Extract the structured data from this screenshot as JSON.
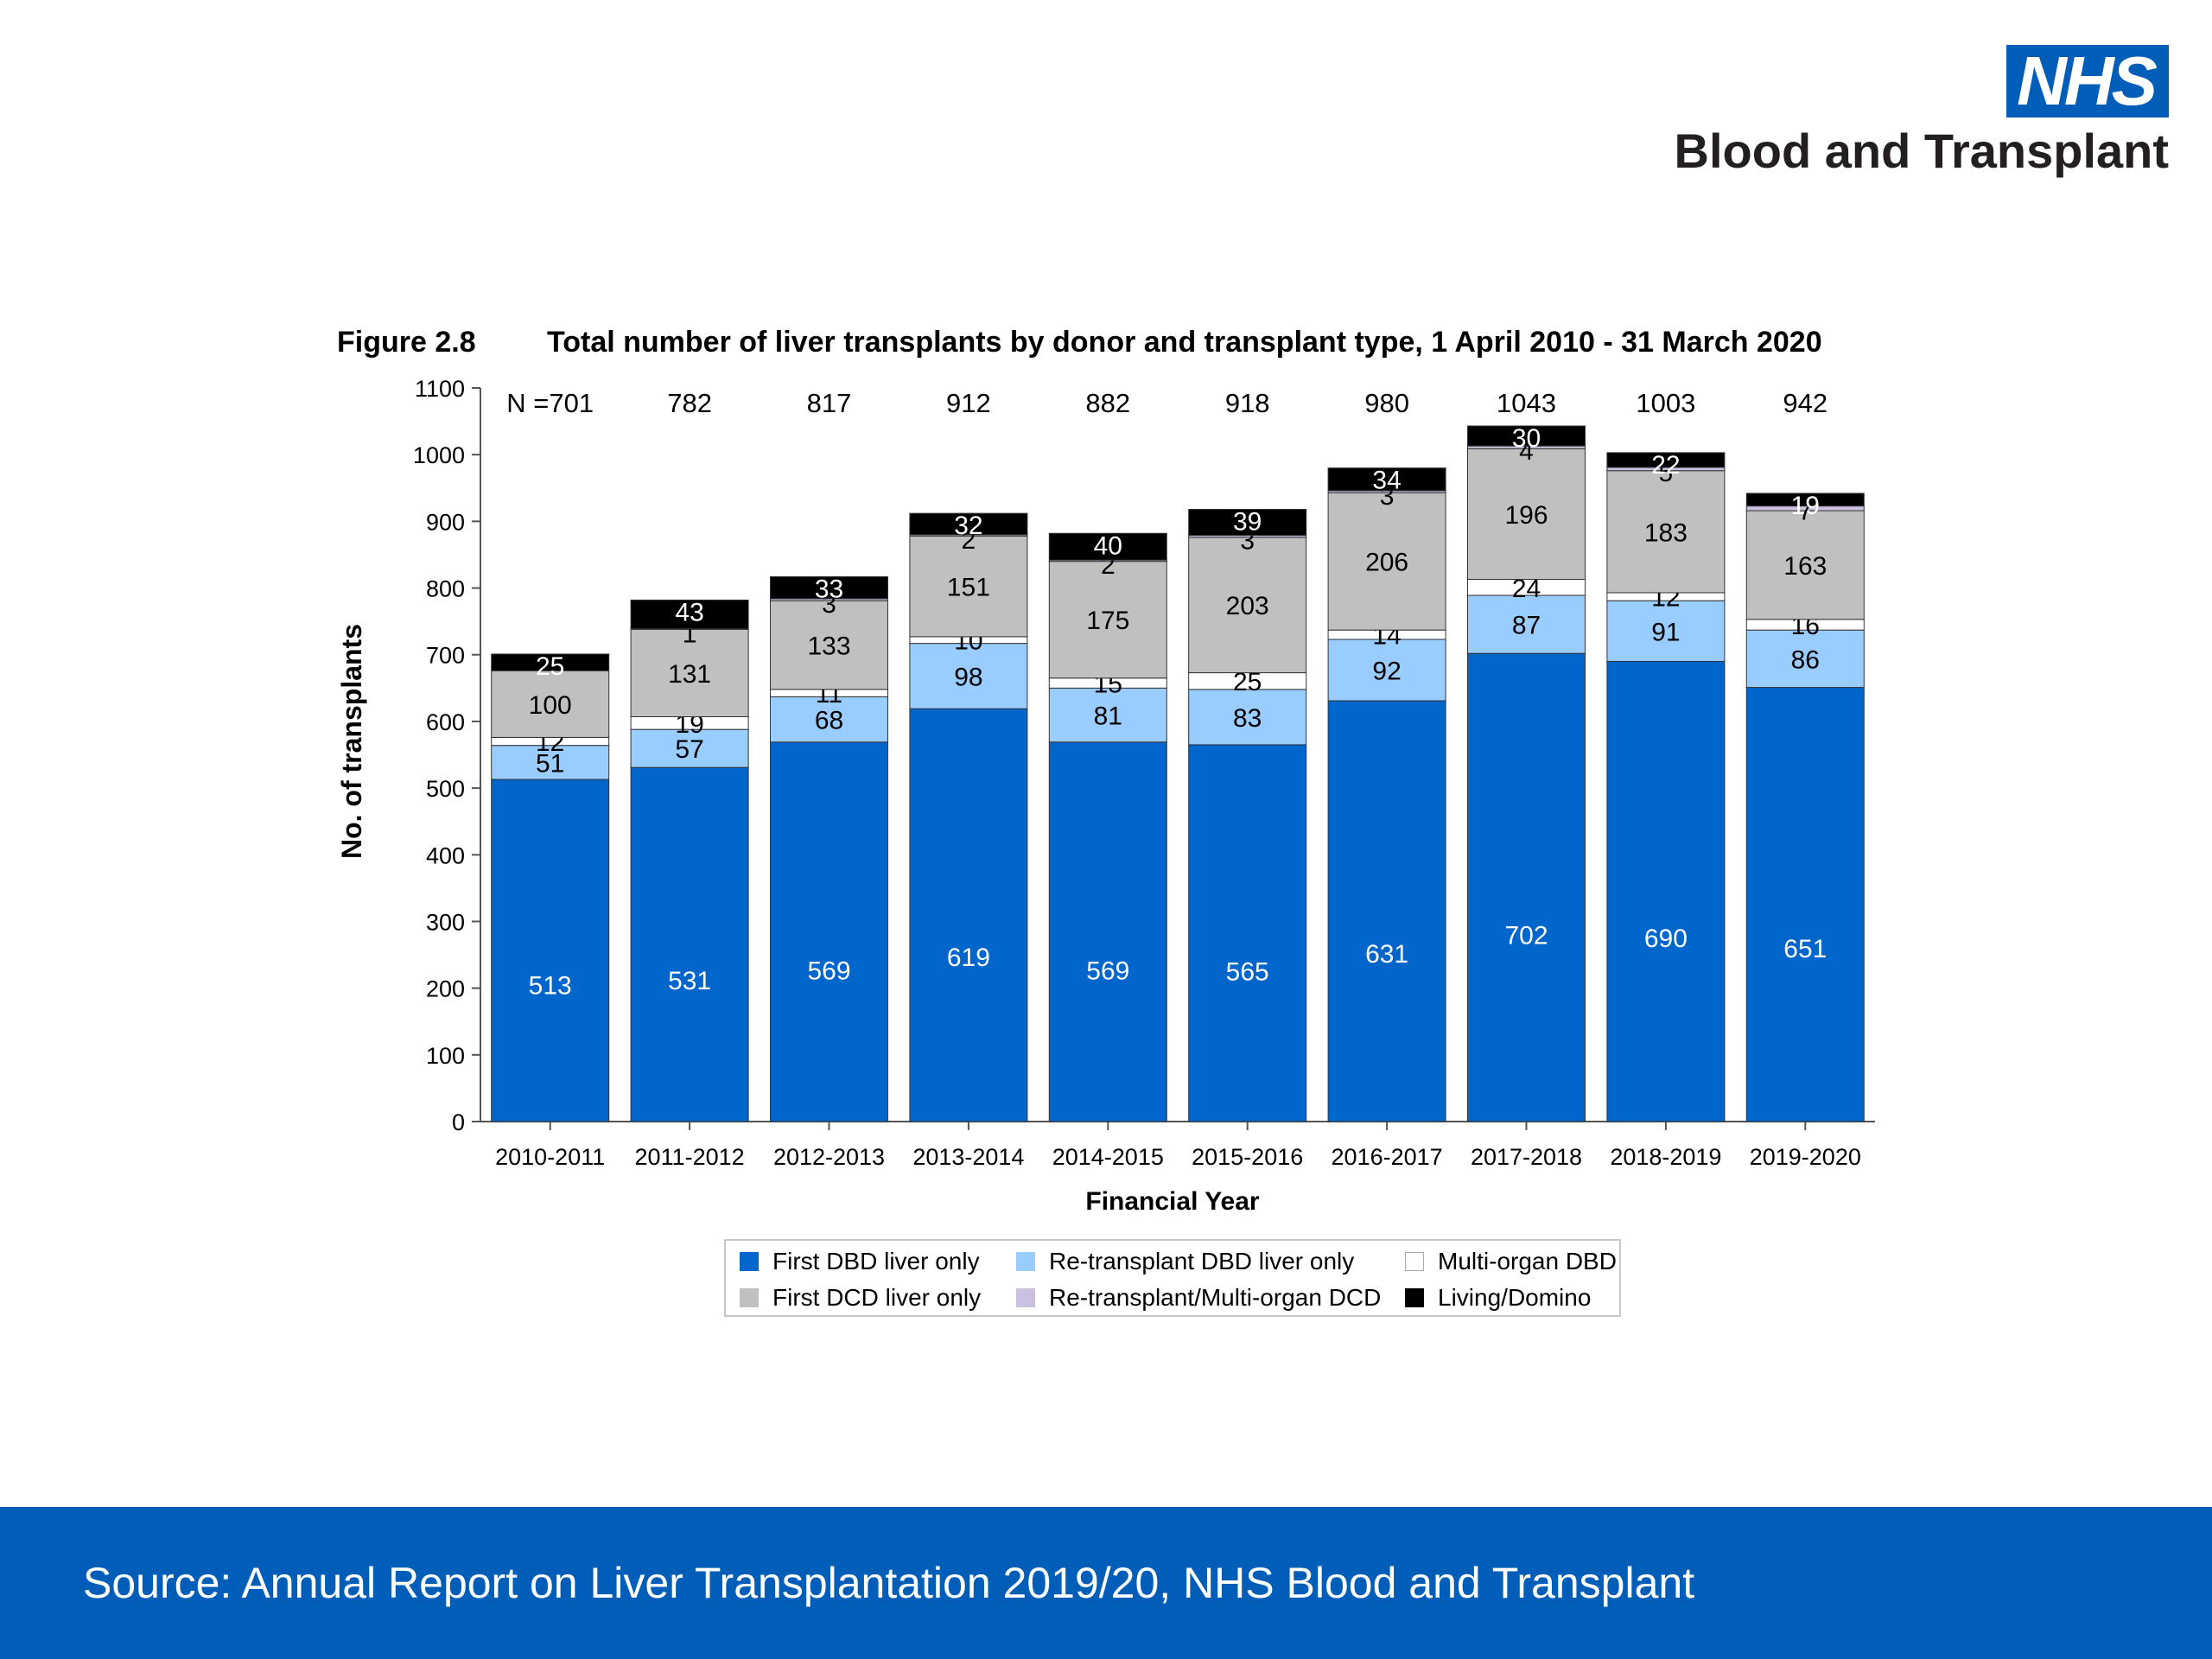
{
  "logo": {
    "nhs": "NHS",
    "org": "Blood and Transplant"
  },
  "footer": {
    "source": "Source: Annual Report on Liver Transplantation 2019/20, NHS Blood and Transplant"
  },
  "colors": {
    "brand": "#005eb8"
  },
  "chart_data": {
    "type": "bar",
    "stacked": true,
    "figure_label": "Figure 2.8",
    "title": "Total number of liver transplants by donor and transplant type, 1 April 2010 - 31 March 2020",
    "xlabel": "Financial Year",
    "ylabel": "No. of transplants",
    "ylim": [
      0,
      1100
    ],
    "yticks": [
      0,
      100,
      200,
      300,
      400,
      500,
      600,
      700,
      800,
      900,
      1000,
      1100
    ],
    "categories": [
      "2010-2011",
      "2011-2012",
      "2012-2013",
      "2013-2014",
      "2014-2015",
      "2015-2016",
      "2016-2017",
      "2017-2018",
      "2018-2019",
      "2019-2020"
    ],
    "totals": [
      "N =701",
      "782",
      "817",
      "912",
      "882",
      "918",
      "980",
      "1043",
      "1003",
      "942"
    ],
    "grid": false,
    "legend_position": "bottom",
    "series": [
      {
        "name": "First DBD liver only",
        "color": "#0066cc",
        "values": [
          513,
          531,
          569,
          619,
          569,
          565,
          631,
          702,
          690,
          651
        ]
      },
      {
        "name": "Re-transplant DBD liver only",
        "color": "#99ccff",
        "values": [
          51,
          57,
          68,
          98,
          81,
          83,
          92,
          87,
          91,
          86
        ]
      },
      {
        "name": "Multi-organ DBD",
        "color": "#ffffff",
        "values": [
          12,
          19,
          11,
          10,
          15,
          25,
          14,
          24,
          12,
          16
        ]
      },
      {
        "name": "First DCD liver only",
        "color": "#c0c0c0",
        "values": [
          100,
          131,
          133,
          151,
          175,
          203,
          206,
          196,
          183,
          163
        ]
      },
      {
        "name": "Re-transplant/Multi-organ DCD",
        "color": "#ccc0e0",
        "values": [
          0,
          1,
          3,
          2,
          2,
          3,
          3,
          4,
          5,
          7
        ]
      },
      {
        "name": "Living/Domino",
        "color": "#000000",
        "values": [
          25,
          43,
          33,
          32,
          40,
          39,
          34,
          30,
          22,
          19
        ]
      }
    ]
  }
}
